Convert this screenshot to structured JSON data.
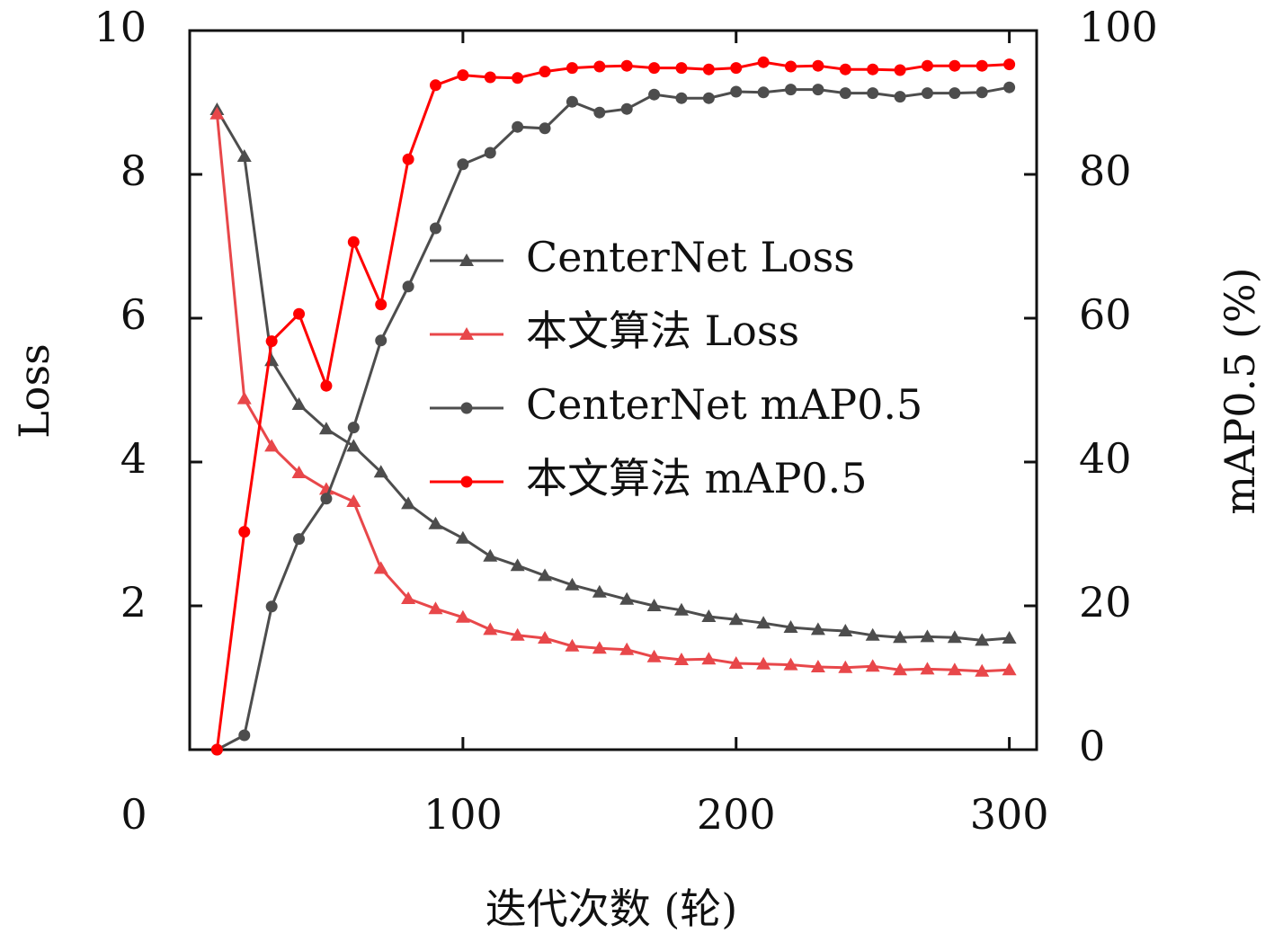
{
  "chart_data": {
    "type": "line",
    "xlabel": "迭代次数 (轮)",
    "ylabel": "Loss",
    "y2label": "mAP0.5 (%)",
    "x": [
      10,
      20,
      30,
      40,
      50,
      60,
      70,
      80,
      90,
      100,
      110,
      120,
      130,
      140,
      150,
      160,
      170,
      180,
      190,
      200,
      210,
      220,
      230,
      240,
      250,
      260,
      270,
      280,
      290,
      300
    ],
    "xlim": [
      0,
      310
    ],
    "xticks": [
      0,
      100,
      200,
      300
    ],
    "ylim": [
      0,
      10
    ],
    "yticks": [
      2,
      4,
      6,
      8,
      10
    ],
    "y2lim": [
      0,
      100
    ],
    "y2ticks": [
      0,
      20,
      40,
      60,
      80,
      100
    ],
    "legend": "center",
    "series": [
      {
        "name": "CenterNet Loss",
        "color": "#4d4d4d",
        "marker": "triangle",
        "values": [
          8.9,
          8.25,
          5.41,
          4.8,
          4.46,
          4.22,
          3.86,
          3.42,
          3.14,
          2.94,
          2.69,
          2.56,
          2.42,
          2.29,
          2.19,
          2.09,
          2.0,
          1.94,
          1.85,
          1.81,
          1.76,
          1.7,
          1.67,
          1.65,
          1.59,
          1.56,
          1.57,
          1.56,
          1.52,
          1.55
        ]
      },
      {
        "name": "本文算法 Loss",
        "color": "#e8474a",
        "marker": "triangle",
        "values": [
          8.84,
          4.88,
          4.22,
          3.85,
          3.62,
          3.45,
          2.52,
          2.1,
          1.96,
          1.84,
          1.67,
          1.59,
          1.55,
          1.44,
          1.41,
          1.39,
          1.29,
          1.25,
          1.26,
          1.2,
          1.19,
          1.18,
          1.15,
          1.14,
          1.16,
          1.11,
          1.12,
          1.11,
          1.09,
          1.11
        ]
      },
      {
        "name": "CenterNet mAP0.5",
        "color": "#4d4d4d",
        "marker": "circle",
        "axis": "y2",
        "values": [
          0,
          2,
          19.9,
          29.3,
          34.9,
          44.8,
          56.9,
          64.4,
          72.5,
          81.4,
          83,
          86.6,
          86.4,
          90.1,
          88.6,
          89.1,
          91.1,
          90.6,
          90.6,
          91.5,
          91.4,
          91.8,
          91.8,
          91.3,
          91.3,
          90.8,
          91.3,
          91.3,
          91.4,
          92.1
        ]
      },
      {
        "name": "本文算法 mAP0.5",
        "color": "#ff0000",
        "marker": "circle",
        "axis": "y2",
        "values": [
          0,
          30.3,
          56.8,
          60.6,
          50.6,
          70.6,
          61.9,
          82.1,
          92.4,
          93.8,
          93.5,
          93.4,
          94.3,
          94.8,
          95,
          95.1,
          94.8,
          94.8,
          94.6,
          94.8,
          95.6,
          95,
          95.1,
          94.6,
          94.6,
          94.5,
          95.1,
          95.1,
          95.1,
          95.3
        ]
      }
    ]
  }
}
